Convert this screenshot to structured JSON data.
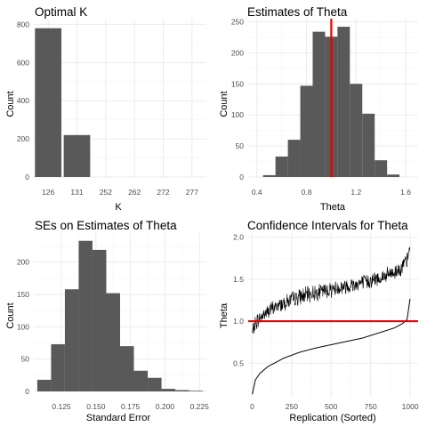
{
  "colors": {
    "bar_fill": "#595959",
    "grid_major": "#ebebeb",
    "grid_minor": "#f5f5f5",
    "ref_line": "#ee0000",
    "ci_line": "#000000",
    "background": "#ffffff"
  },
  "chart_data": [
    {
      "type": "bar",
      "title": "Optimal K",
      "xlabel": "K",
      "ylabel": "Count",
      "categories": [
        "126",
        "131",
        "252",
        "262",
        "272",
        "277"
      ],
      "values": [
        780,
        220,
        0,
        0,
        0,
        0
      ],
      "ylim": [
        0,
        830
      ],
      "yticks": [
        0,
        200,
        400,
        600,
        800
      ],
      "grid": true
    },
    {
      "type": "bar",
      "title": "Estimates of Theta",
      "xlabel": "Theta",
      "ylabel": "Count",
      "bin_width": 0.1,
      "bins": [
        {
          "x0": 0.45,
          "x1": 0.55,
          "count": 3
        },
        {
          "x0": 0.55,
          "x1": 0.65,
          "count": 33
        },
        {
          "x0": 0.65,
          "x1": 0.75,
          "count": 60
        },
        {
          "x0": 0.75,
          "x1": 0.85,
          "count": 147
        },
        {
          "x0": 0.85,
          "x1": 0.95,
          "count": 234
        },
        {
          "x0": 0.95,
          "x1": 1.05,
          "count": 226
        },
        {
          "x0": 1.05,
          "x1": 1.15,
          "count": 242
        },
        {
          "x0": 1.15,
          "x1": 1.25,
          "count": 150
        },
        {
          "x0": 1.25,
          "x1": 1.35,
          "count": 102
        },
        {
          "x0": 1.35,
          "x1": 1.45,
          "count": 27
        },
        {
          "x0": 1.45,
          "x1": 1.55,
          "count": 4
        }
      ],
      "xlim": [
        0.33,
        1.7
      ],
      "ylim": [
        0,
        255
      ],
      "xticks": [
        "0.4",
        "0.8",
        "1.2",
        "1.6"
      ],
      "yticks": [
        0,
        50,
        100,
        150,
        200,
        250
      ],
      "ref_line_x": 1.0,
      "grid": true
    },
    {
      "type": "bar",
      "title": "SEs on Estimates of Theta",
      "xlabel": "Standard Error",
      "ylabel": "Count",
      "bin_width": 0.01,
      "bins": [
        {
          "x0": 0.1075,
          "x1": 0.1175,
          "count": 18
        },
        {
          "x0": 0.1175,
          "x1": 0.1275,
          "count": 73
        },
        {
          "x0": 0.1275,
          "x1": 0.1375,
          "count": 158
        },
        {
          "x0": 0.1375,
          "x1": 0.1475,
          "count": 233
        },
        {
          "x0": 0.1475,
          "x1": 0.1575,
          "count": 219
        },
        {
          "x0": 0.1575,
          "x1": 0.1675,
          "count": 152
        },
        {
          "x0": 0.1675,
          "x1": 0.1775,
          "count": 70
        },
        {
          "x0": 0.1775,
          "x1": 0.1875,
          "count": 32
        },
        {
          "x0": 0.1875,
          "x1": 0.1975,
          "count": 21
        },
        {
          "x0": 0.1975,
          "x1": 0.2075,
          "count": 4
        },
        {
          "x0": 0.2075,
          "x1": 0.2175,
          "count": 2
        },
        {
          "x0": 0.2175,
          "x1": 0.2275,
          "count": 1
        }
      ],
      "xlim": [
        0.105,
        0.23
      ],
      "ylim": [
        0,
        245
      ],
      "xticks": [
        "0.125",
        "0.150",
        "0.175",
        "0.200",
        "0.225"
      ],
      "yticks": [
        0,
        50,
        100,
        150,
        200
      ],
      "grid": true
    },
    {
      "type": "line",
      "title": "Confidence Intervals for Theta",
      "xlabel": "Replication (Sorted)",
      "ylabel": "Theta",
      "n_replications": 1000,
      "estimate_quantiles": {
        "x": [
          0,
          20,
          50,
          100,
          200,
          300,
          400,
          500,
          600,
          700,
          800,
          900,
          950,
          980,
          1000
        ],
        "y": [
          0.12,
          0.3,
          0.38,
          0.46,
          0.56,
          0.63,
          0.68,
          0.72,
          0.76,
          0.8,
          0.86,
          0.92,
          0.97,
          1.02,
          1.28
        ]
      },
      "upper_bound_quantiles": {
        "x": [
          0,
          20,
          50,
          100,
          200,
          300,
          400,
          500,
          600,
          700,
          800,
          900,
          950,
          980,
          1000
        ],
        "y": [
          0.85,
          0.97,
          1.04,
          1.12,
          1.22,
          1.29,
          1.34,
          1.38,
          1.42,
          1.46,
          1.51,
          1.58,
          1.65,
          1.72,
          1.88
        ]
      },
      "xlim": [
        -25,
        1050
      ],
      "ylim": [
        0.1,
        2.05
      ],
      "xticks": [
        "0",
        "250",
        "500",
        "750",
        "1000"
      ],
      "yticks": [
        "0.5",
        "1.0",
        "1.5",
        "2.0"
      ],
      "ref_line_y": 1.0,
      "grid": true
    }
  ]
}
